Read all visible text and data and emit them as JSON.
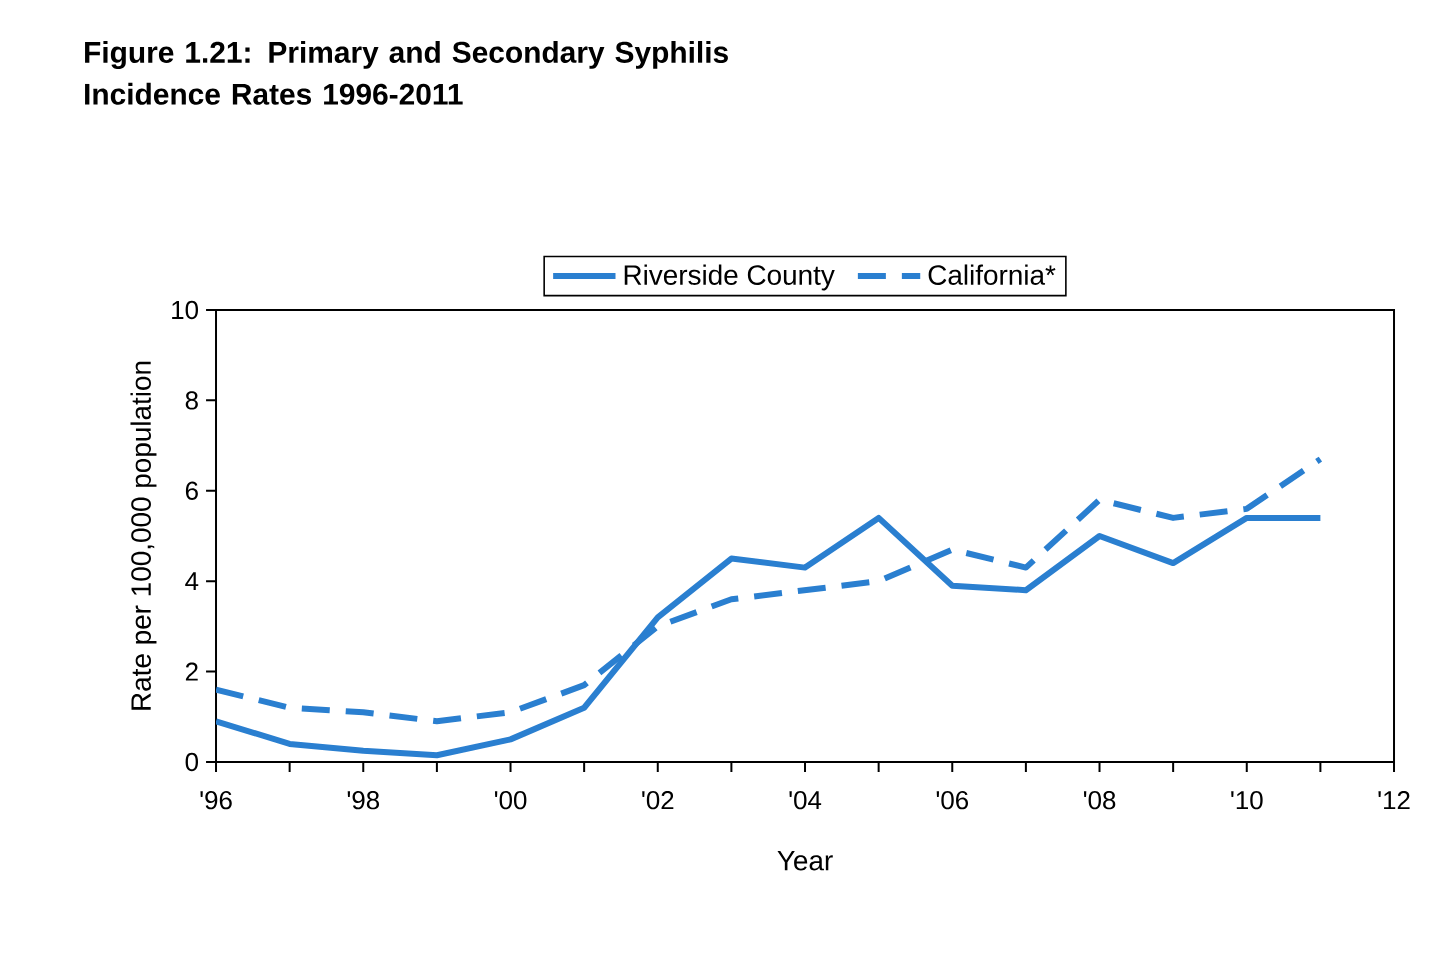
{
  "chart_data": {
    "type": "line",
    "title": "Figure 1.21: Primary and Secondary Syphilis Incidence Rates 1996-2011",
    "xlabel": "Year",
    "ylabel": "Rate per 100,000 population",
    "x": [
      1996,
      1997,
      1998,
      1999,
      2000,
      2001,
      2002,
      2003,
      2004,
      2005,
      2006,
      2007,
      2008,
      2009,
      2010,
      2011
    ],
    "series": [
      {
        "name": "Riverside County",
        "color": "#2a7fd0",
        "line_style": "solid",
        "values": [
          0.9,
          0.4,
          0.25,
          0.15,
          0.5,
          1.2,
          3.2,
          4.5,
          4.3,
          5.4,
          3.9,
          3.8,
          5.0,
          4.4,
          5.4,
          5.4
        ]
      },
      {
        "name": "California*",
        "color": "#2a7fd0",
        "line_style": "dashed",
        "values": [
          1.6,
          1.2,
          1.1,
          0.9,
          1.1,
          1.7,
          3.0,
          3.6,
          3.8,
          4.0,
          4.7,
          4.3,
          5.8,
          5.4,
          5.6,
          6.7
        ]
      }
    ],
    "xlim": [
      1996,
      2012
    ],
    "ylim": [
      0,
      10
    ],
    "xticks": [
      {
        "value": 1996,
        "label": "'96"
      },
      {
        "value": 1997,
        "label": null
      },
      {
        "value": 1998,
        "label": "'98"
      },
      {
        "value": 1999,
        "label": null
      },
      {
        "value": 2000,
        "label": "'00"
      },
      {
        "value": 2001,
        "label": null
      },
      {
        "value": 2002,
        "label": "'02"
      },
      {
        "value": 2003,
        "label": null
      },
      {
        "value": 2004,
        "label": "'04"
      },
      {
        "value": 2005,
        "label": null
      },
      {
        "value": 2006,
        "label": "'06"
      },
      {
        "value": 2007,
        "label": null
      },
      {
        "value": 2008,
        "label": "'08"
      },
      {
        "value": 2009,
        "label": null
      },
      {
        "value": 2010,
        "label": "'10"
      },
      {
        "value": 2011,
        "label": null
      },
      {
        "value": 2012,
        "label": "'12"
      }
    ],
    "yticks": [
      0,
      2,
      4,
      6,
      8,
      10
    ],
    "legend": "top",
    "grid": false
  }
}
